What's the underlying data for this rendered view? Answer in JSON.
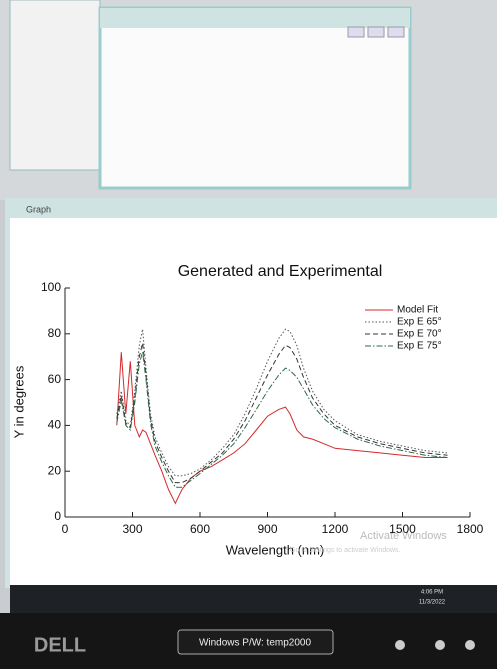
{
  "window": {
    "title": "Graph"
  },
  "chart_data": {
    "type": "line",
    "title": "Generated and Experimental",
    "x_label": "Wavelength (nm)",
    "y_label": "Y in degrees",
    "x": [
      230,
      250,
      270,
      290,
      310,
      330,
      345,
      360,
      380,
      400,
      430,
      460,
      490,
      520,
      560,
      600,
      650,
      700,
      750,
      800,
      850,
      900,
      950,
      980,
      1000,
      1030,
      1060,
      1100,
      1150,
      1200,
      1300,
      1400,
      1500,
      1600,
      1700
    ],
    "series": [
      {
        "name": "Model Fit",
        "color": "#d42a2a",
        "style": "solid",
        "values": [
          40,
          72,
          45,
          68,
          40,
          35,
          38,
          37,
          32,
          27,
          20,
          12,
          6,
          12,
          17,
          20,
          22,
          25,
          28,
          32,
          38,
          44,
          47,
          48,
          45,
          38,
          35,
          34,
          32,
          30,
          29,
          28,
          27,
          26,
          26
        ]
      },
      {
        "name": "Exp E 65°",
        "color": "#555555",
        "style": "dotted",
        "values": [
          45,
          55,
          42,
          40,
          55,
          75,
          82,
          65,
          45,
          35,
          28,
          22,
          18,
          18,
          19,
          21,
          25,
          30,
          36,
          45,
          56,
          68,
          78,
          82,
          81,
          75,
          65,
          55,
          47,
          42,
          36,
          33,
          31,
          29,
          28
        ]
      },
      {
        "name": "Exp E 70°",
        "color": "#333333",
        "style": "dashed",
        "values": [
          43,
          53,
          41,
          39,
          52,
          70,
          76,
          62,
          43,
          33,
          26,
          20,
          15,
          15,
          17,
          20,
          24,
          28,
          34,
          42,
          52,
          62,
          71,
          75,
          74,
          69,
          61,
          52,
          45,
          40,
          35,
          32,
          30,
          28,
          27
        ]
      },
      {
        "name": "Exp E 75°",
        "color": "#2f6a48",
        "style": "dashdot",
        "values": [
          41,
          51,
          40,
          38,
          50,
          67,
          72,
          60,
          41,
          31,
          24,
          18,
          13,
          13,
          16,
          19,
          23,
          27,
          32,
          39,
          47,
          55,
          62,
          65,
          64,
          61,
          56,
          49,
          43,
          39,
          34,
          31,
          29,
          27,
          26
        ]
      }
    ],
    "xlim": [
      0,
      1800
    ],
    "xticks": [
      0,
      300,
      600,
      900,
      1200,
      1500,
      1800
    ],
    "ylim": [
      0,
      100
    ],
    "yticks": [
      0,
      20,
      40,
      60,
      80,
      100
    ],
    "legend": "top-right"
  },
  "watermark": {
    "title": "Activate Windows",
    "text": "Go to Settings to activate Windows."
  },
  "taskbar": {
    "time": "4:06 PM",
    "date": "11/3/2022"
  },
  "monitor": {
    "brand": "DELL",
    "label": "Windows P/W: temp2000"
  }
}
